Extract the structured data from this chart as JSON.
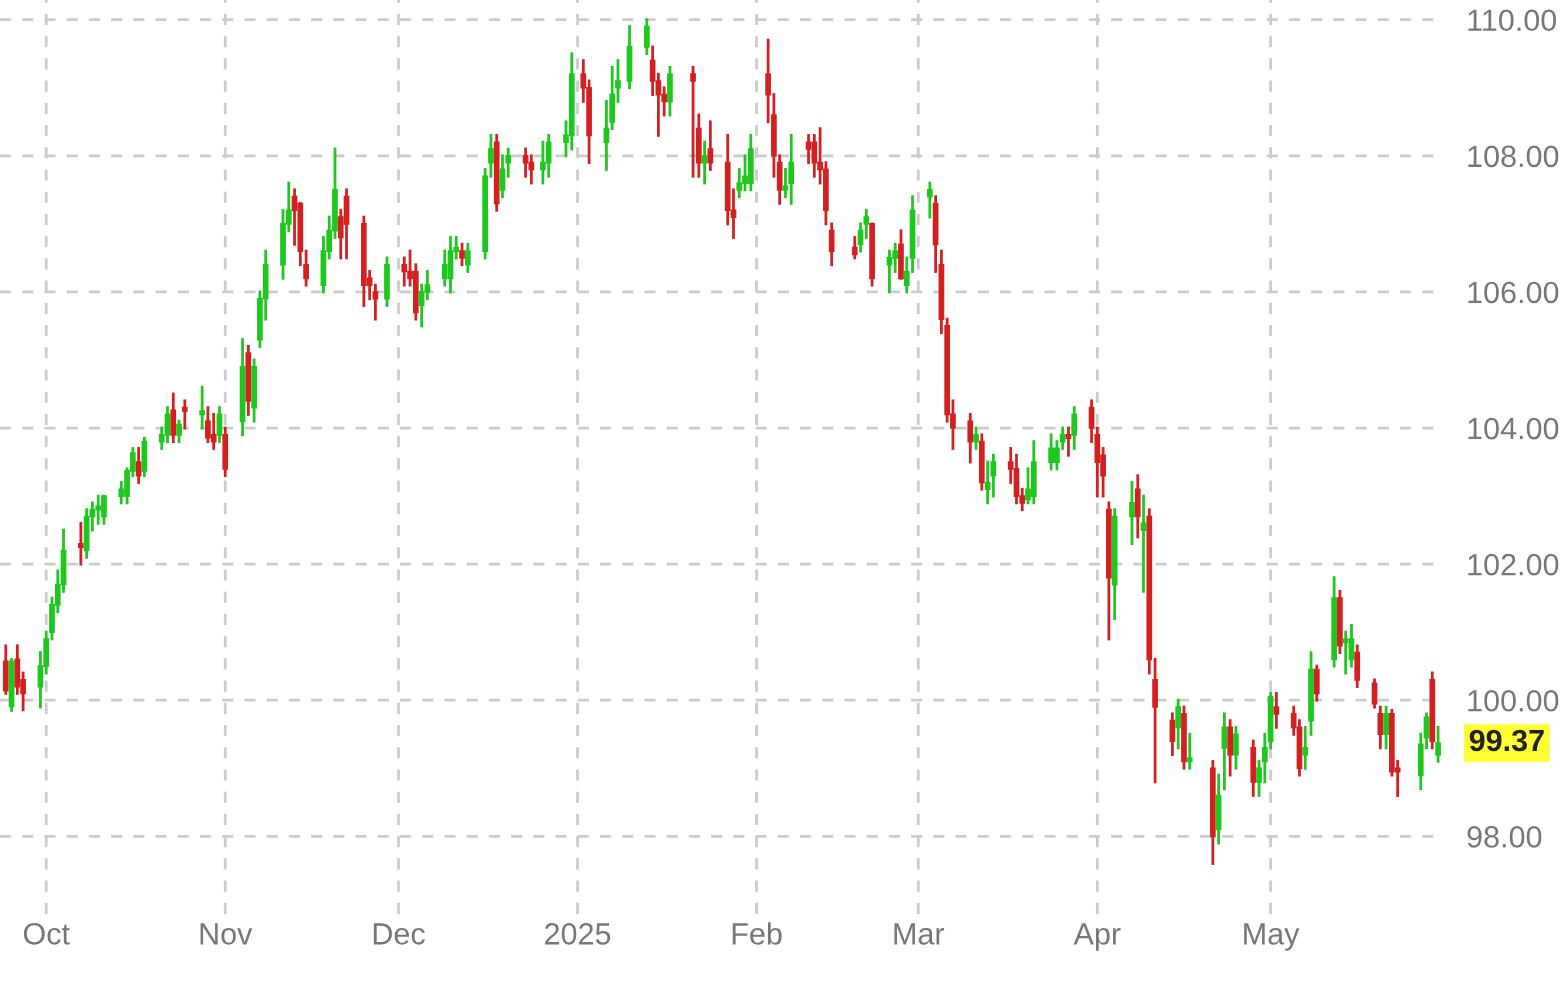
{
  "chart_data": {
    "type": "candlestick",
    "x": [
      "2024-09-24",
      "2024-09-25",
      "2024-09-26",
      "2024-09-27",
      "2024-09-30",
      "2024-10-01",
      "2024-10-02",
      "2024-10-03",
      "2024-10-04",
      "2024-10-07",
      "2024-10-08",
      "2024-10-09",
      "2024-10-10",
      "2024-10-11",
      "2024-10-14",
      "2024-10-15",
      "2024-10-16",
      "2024-10-17",
      "2024-10-18",
      "2024-10-21",
      "2024-10-22",
      "2024-10-23",
      "2024-10-24",
      "2024-10-25",
      "2024-10-28",
      "2024-10-29",
      "2024-10-30",
      "2024-10-31",
      "2024-11-01",
      "2024-11-04",
      "2024-11-05",
      "2024-11-06",
      "2024-11-07",
      "2024-11-08",
      "2024-11-11",
      "2024-11-12",
      "2024-11-13",
      "2024-11-14",
      "2024-11-15",
      "2024-11-18",
      "2024-11-19",
      "2024-11-20",
      "2024-11-21",
      "2024-11-22",
      "2024-11-25",
      "2024-11-26",
      "2024-11-27",
      "2024-11-29",
      "2024-12-02",
      "2024-12-03",
      "2024-12-04",
      "2024-12-05",
      "2024-12-06",
      "2024-12-09",
      "2024-12-10",
      "2024-12-11",
      "2024-12-12",
      "2024-12-13",
      "2024-12-16",
      "2024-12-17",
      "2024-12-18",
      "2024-12-19",
      "2024-12-20",
      "2024-12-23",
      "2024-12-24",
      "2024-12-26",
      "2024-12-27",
      "2024-12-30",
      "2024-12-31",
      "2025-01-02",
      "2025-01-03",
      "2025-01-06",
      "2025-01-07",
      "2025-01-08",
      "2025-01-10",
      "2025-01-13",
      "2025-01-14",
      "2025-01-15",
      "2025-01-16",
      "2025-01-17",
      "2025-01-21",
      "2025-01-22",
      "2025-01-23",
      "2025-01-24",
      "2025-01-27",
      "2025-01-28",
      "2025-01-29",
      "2025-01-30",
      "2025-01-31",
      "2025-02-03",
      "2025-02-04",
      "2025-02-05",
      "2025-02-06",
      "2025-02-07",
      "2025-02-10",
      "2025-02-11",
      "2025-02-12",
      "2025-02-13",
      "2025-02-14",
      "2025-02-18",
      "2025-02-19",
      "2025-02-20",
      "2025-02-21",
      "2025-02-24",
      "2025-02-25",
      "2025-02-26",
      "2025-02-27",
      "2025-02-28",
      "2025-03-03",
      "2025-03-04",
      "2025-03-05",
      "2025-03-06",
      "2025-03-07",
      "2025-03-10",
      "2025-03-11",
      "2025-03-12",
      "2025-03-13",
      "2025-03-14",
      "2025-03-17",
      "2025-03-18",
      "2025-03-19",
      "2025-03-20",
      "2025-03-21",
      "2025-03-24",
      "2025-03-25",
      "2025-03-26",
      "2025-03-27",
      "2025-03-28",
      "2025-03-31",
      "2025-04-01",
      "2025-04-02",
      "2025-04-03",
      "2025-04-04",
      "2025-04-07",
      "2025-04-08",
      "2025-04-09",
      "2025-04-10",
      "2025-04-11",
      "2025-04-14",
      "2025-04-15",
      "2025-04-16",
      "2025-04-17",
      "2025-04-21",
      "2025-04-22",
      "2025-04-23",
      "2025-04-24",
      "2025-04-25",
      "2025-04-28",
      "2025-04-29",
      "2025-04-30",
      "2025-05-01",
      "2025-05-02",
      "2025-05-05",
      "2025-05-06",
      "2025-05-07",
      "2025-05-08",
      "2025-05-09",
      "2025-05-12",
      "2025-05-13",
      "2025-05-14",
      "2025-05-15",
      "2025-05-16",
      "2025-05-19",
      "2025-05-20",
      "2025-05-21",
      "2025-05-22",
      "2025-05-23",
      "2025-05-27",
      "2025-05-28",
      "2025-05-29",
      "2025-05-30"
    ],
    "ohlc": [
      [
        100.57,
        100.8,
        100.1,
        100.14
      ],
      [
        99.91,
        100.6,
        99.85,
        100.57
      ],
      [
        100.6,
        100.8,
        100.1,
        100.2
      ],
      [
        100.3,
        100.4,
        99.86,
        100.1
      ],
      [
        100.2,
        100.7,
        99.9,
        100.5
      ],
      [
        100.5,
        101.0,
        100.4,
        100.9
      ],
      [
        101.0,
        101.5,
        100.9,
        101.4
      ],
      [
        101.4,
        101.9,
        101.3,
        101.7
      ],
      [
        101.7,
        102.5,
        101.6,
        102.2
      ],
      [
        102.3,
        102.6,
        102.0,
        102.25
      ],
      [
        102.2,
        102.8,
        102.1,
        102.7
      ],
      [
        102.7,
        102.9,
        102.5,
        102.8
      ],
      [
        102.8,
        103.0,
        102.6,
        102.85
      ],
      [
        102.7,
        103.0,
        102.6,
        103.0
      ],
      [
        103.0,
        103.2,
        102.9,
        103.1
      ],
      [
        103.0,
        103.4,
        102.9,
        103.37
      ],
      [
        103.37,
        103.7,
        103.3,
        103.63
      ],
      [
        103.5,
        103.7,
        103.2,
        103.3
      ],
      [
        103.37,
        103.85,
        103.3,
        103.8
      ],
      [
        103.8,
        104.0,
        103.7,
        103.9
      ],
      [
        103.9,
        104.3,
        103.8,
        104.2
      ],
      [
        104.26,
        104.5,
        103.8,
        103.9
      ],
      [
        103.9,
        104.1,
        103.8,
        104.05
      ],
      [
        104.3,
        104.4,
        104.0,
        104.25
      ],
      [
        104.2,
        104.6,
        104.0,
        104.25
      ],
      [
        104.1,
        104.3,
        103.8,
        103.86
      ],
      [
        103.9,
        104.2,
        103.7,
        103.8
      ],
      [
        103.9,
        104.3,
        103.8,
        104.2
      ],
      [
        103.9,
        104.0,
        103.3,
        103.4
      ],
      [
        104.1,
        105.3,
        103.9,
        104.9
      ],
      [
        105.1,
        105.2,
        104.2,
        104.4
      ],
      [
        104.3,
        105.0,
        104.1,
        104.9
      ],
      [
        105.3,
        106.0,
        105.2,
        105.9
      ],
      [
        105.9,
        106.6,
        105.6,
        106.4
      ],
      [
        106.4,
        107.2,
        106.2,
        107.0
      ],
      [
        107.0,
        107.6,
        106.9,
        107.2
      ],
      [
        107.4,
        107.5,
        106.7,
        107.2
      ],
      [
        107.3,
        107.3,
        106.4,
        106.6
      ],
      [
        106.4,
        106.6,
        106.1,
        106.2
      ],
      [
        106.1,
        106.8,
        106.0,
        106.6
      ],
      [
        106.6,
        107.1,
        106.5,
        106.9
      ],
      [
        106.9,
        108.1,
        106.8,
        107.5
      ],
      [
        107.1,
        107.2,
        106.5,
        106.8
      ],
      [
        107.4,
        107.5,
        106.5,
        107.0
      ],
      [
        107.0,
        107.1,
        105.8,
        106.1
      ],
      [
        106.2,
        106.3,
        105.9,
        106.1
      ],
      [
        106.0,
        106.1,
        105.6,
        105.9
      ],
      [
        105.9,
        106.5,
        105.8,
        106.4
      ],
      [
        106.4,
        106.5,
        106.1,
        106.3
      ],
      [
        106.3,
        106.6,
        106.1,
        106.2
      ],
      [
        106.3,
        106.4,
        105.6,
        105.7
      ],
      [
        105.8,
        106.1,
        105.5,
        106.0
      ],
      [
        106.0,
        106.3,
        105.9,
        106.1
      ],
      [
        106.2,
        106.6,
        106.1,
        106.4
      ],
      [
        106.2,
        106.8,
        106.0,
        106.6
      ],
      [
        106.6,
        106.8,
        106.5,
        106.65
      ],
      [
        106.6,
        106.7,
        106.4,
        106.5
      ],
      [
        106.4,
        106.7,
        106.3,
        106.6
      ],
      [
        106.6,
        107.8,
        106.5,
        107.7
      ],
      [
        107.9,
        108.3,
        107.7,
        108.1
      ],
      [
        108.2,
        108.3,
        107.2,
        107.3
      ],
      [
        107.5,
        108.0,
        107.4,
        107.8
      ],
      [
        107.9,
        108.1,
        107.7,
        108.0
      ],
      [
        108.0,
        108.1,
        107.7,
        107.9
      ],
      [
        107.9,
        108.0,
        107.6,
        107.8
      ],
      [
        107.8,
        108.2,
        107.6,
        107.9
      ],
      [
        107.9,
        108.3,
        107.7,
        108.2
      ],
      [
        108.2,
        108.5,
        108.0,
        108.3
      ],
      [
        108.3,
        109.5,
        108.1,
        109.2
      ],
      [
        109.2,
        109.4,
        108.8,
        109.0
      ],
      [
        109.0,
        109.1,
        107.9,
        108.3
      ],
      [
        108.2,
        108.8,
        107.8,
        108.4
      ],
      [
        108.5,
        109.3,
        108.4,
        108.9
      ],
      [
        109.0,
        109.4,
        108.8,
        109.1
      ],
      [
        109.1,
        109.9,
        109.0,
        109.6
      ],
      [
        109.6,
        110.0,
        109.5,
        109.9
      ],
      [
        109.4,
        109.6,
        108.9,
        109.1
      ],
      [
        109.1,
        109.2,
        108.3,
        108.9
      ],
      [
        108.9,
        109.0,
        108.6,
        108.8
      ],
      [
        108.8,
        109.3,
        108.6,
        109.2
      ],
      [
        109.2,
        109.3,
        107.7,
        109.1
      ],
      [
        108.4,
        108.6,
        107.7,
        107.9
      ],
      [
        107.9,
        108.2,
        107.6,
        108.0
      ],
      [
        108.1,
        108.5,
        107.8,
        107.9
      ],
      [
        107.9,
        108.3,
        107.0,
        107.2
      ],
      [
        107.2,
        107.5,
        106.8,
        107.1
      ],
      [
        107.5,
        107.8,
        107.4,
        107.6
      ],
      [
        107.6,
        108.0,
        107.5,
        107.7
      ],
      [
        107.6,
        108.3,
        107.5,
        108.1
      ],
      [
        109.2,
        109.7,
        108.5,
        108.9
      ],
      [
        108.6,
        108.9,
        107.7,
        108.0
      ],
      [
        107.9,
        108.0,
        107.3,
        107.5
      ],
      [
        107.5,
        107.8,
        107.4,
        107.55
      ],
      [
        107.6,
        108.3,
        107.3,
        107.9
      ],
      [
        108.2,
        108.3,
        107.9,
        108.1
      ],
      [
        108.2,
        108.3,
        107.7,
        107.9
      ],
      [
        107.9,
        108.4,
        107.6,
        107.8
      ],
      [
        107.8,
        107.9,
        107.0,
        107.2
      ],
      [
        106.9,
        107.0,
        106.4,
        106.6
      ],
      [
        106.65,
        106.8,
        106.5,
        106.55
      ],
      [
        106.7,
        107.0,
        106.6,
        106.9
      ],
      [
        107.0,
        107.2,
        106.8,
        107.1
      ],
      [
        107.0,
        107.0,
        106.1,
        106.2
      ],
      [
        106.4,
        106.6,
        106.0,
        106.5
      ],
      [
        106.5,
        106.7,
        106.3,
        106.6
      ],
      [
        106.7,
        106.9,
        106.2,
        106.2
      ],
      [
        106.1,
        106.5,
        106.0,
        106.3
      ],
      [
        106.5,
        107.4,
        106.3,
        107.2
      ],
      [
        107.4,
        107.6,
        107.1,
        107.5
      ],
      [
        107.3,
        107.4,
        106.3,
        106.7
      ],
      [
        106.4,
        106.6,
        105.4,
        105.6
      ],
      [
        105.5,
        105.6,
        104.1,
        104.2
      ],
      [
        104.2,
        104.4,
        103.7,
        104.0
      ],
      [
        104.1,
        104.2,
        103.5,
        103.8
      ],
      [
        103.8,
        104.0,
        103.7,
        103.9
      ],
      [
        103.8,
        103.9,
        103.1,
        103.2
      ],
      [
        103.1,
        103.5,
        102.9,
        103.2
      ],
      [
        103.3,
        103.6,
        103.0,
        103.5
      ],
      [
        103.5,
        103.7,
        103.2,
        103.4
      ],
      [
        103.4,
        103.6,
        102.9,
        103.0
      ],
      [
        103.0,
        103.1,
        102.8,
        102.9
      ],
      [
        102.95,
        103.4,
        102.9,
        103.1
      ],
      [
        103.0,
        103.8,
        102.9,
        103.5
      ],
      [
        103.5,
        103.9,
        103.4,
        103.7
      ],
      [
        103.5,
        103.8,
        103.4,
        103.7
      ],
      [
        103.8,
        104.0,
        103.7,
        103.9
      ],
      [
        103.9,
        104.0,
        103.6,
        103.85
      ],
      [
        103.9,
        104.3,
        103.7,
        104.2
      ],
      [
        104.3,
        104.4,
        103.8,
        104.0
      ],
      [
        103.9,
        104.0,
        103.0,
        103.5
      ],
      [
        103.6,
        103.7,
        103.0,
        103.3
      ],
      [
        102.8,
        102.9,
        100.9,
        101.8
      ],
      [
        101.7,
        102.8,
        101.2,
        102.7
      ],
      [
        102.7,
        103.2,
        102.3,
        102.9
      ],
      [
        103.1,
        103.3,
        102.4,
        102.7
      ],
      [
        102.5,
        103.0,
        101.6,
        102.6
      ],
      [
        102.7,
        102.8,
        100.4,
        100.6
      ],
      [
        100.3,
        100.6,
        98.8,
        99.9
      ],
      [
        99.7,
        99.8,
        99.2,
        99.4
      ],
      [
        99.6,
        100.0,
        99.3,
        99.9
      ],
      [
        99.8,
        99.9,
        99.0,
        99.1
      ],
      [
        99.1,
        99.5,
        99.0,
        99.15
      ],
      [
        99.0,
        99.1,
        97.6,
        98.0
      ],
      [
        98.1,
        98.9,
        97.9,
        98.6
      ],
      [
        99.3,
        99.8,
        98.7,
        99.6
      ],
      [
        99.6,
        99.7,
        98.9,
        99.2
      ],
      [
        99.2,
        99.6,
        99.0,
        99.5
      ],
      [
        99.3,
        99.4,
        98.6,
        98.8
      ],
      [
        98.8,
        99.1,
        98.6,
        99.0
      ],
      [
        99.1,
        99.5,
        98.8,
        99.3
      ],
      [
        99.4,
        100.1,
        99.3,
        100.05
      ],
      [
        99.9,
        100.1,
        99.6,
        99.8
      ],
      [
        99.8,
        99.9,
        99.5,
        99.6
      ],
      [
        99.6,
        99.7,
        98.9,
        99.0
      ],
      [
        99.2,
        99.6,
        99.0,
        99.3
      ],
      [
        99.7,
        100.7,
        99.5,
        100.45
      ],
      [
        100.45,
        100.5,
        100.0,
        100.1
      ],
      [
        100.6,
        101.8,
        100.5,
        101.5
      ],
      [
        101.5,
        101.6,
        100.7,
        100.8
      ],
      [
        100.85,
        101.0,
        100.4,
        100.9
      ],
      [
        100.6,
        101.1,
        100.5,
        100.9
      ],
      [
        100.7,
        100.8,
        100.2,
        100.3
      ],
      [
        100.25,
        100.3,
        99.9,
        99.95
      ],
      [
        99.8,
        99.9,
        99.3,
        99.5
      ],
      [
        99.5,
        99.9,
        99.3,
        99.8
      ],
      [
        99.8,
        99.85,
        98.9,
        98.95
      ],
      [
        99.0,
        99.1,
        98.6,
        98.95
      ],
      [
        98.9,
        99.5,
        98.7,
        99.35
      ],
      [
        99.45,
        99.8,
        99.3,
        99.75
      ],
      [
        100.3,
        100.4,
        99.3,
        99.4
      ],
      [
        99.2,
        99.6,
        99.1,
        99.37
      ]
    ],
    "colors": [
      "#d42020",
      "#1ec81e",
      "#d42020",
      "#d42020",
      "#1ec81e",
      "#1ec81e",
      "#1ec81e",
      "#1ec81e",
      "#1ec81e",
      "#d42020",
      "#1ec81e",
      "#1ec81e",
      "#1ec81e",
      "#1ec81e",
      "#1ec81e",
      "#1ec81e",
      "#1ec81e",
      "#d42020",
      "#1ec81e",
      "#1ec81e",
      "#1ec81e",
      "#d42020",
      "#1ec81e",
      "#d42020",
      "#1ec81e",
      "#d42020",
      "#d42020",
      "#1ec81e",
      "#d42020",
      "#1ec81e",
      "#d42020",
      "#1ec81e",
      "#1ec81e",
      "#1ec81e",
      "#1ec81e",
      "#1ec81e",
      "#d42020",
      "#d42020",
      "#d42020",
      "#1ec81e",
      "#1ec81e",
      "#1ec81e",
      "#d42020",
      "#d42020",
      "#d42020",
      "#d42020",
      "#d42020",
      "#1ec81e",
      "#d42020",
      "#d42020",
      "#d42020",
      "#1ec81e",
      "#1ec81e",
      "#1ec81e",
      "#1ec81e",
      "#1ec81e",
      "#d42020",
      "#1ec81e",
      "#1ec81e",
      "#1ec81e",
      "#d42020",
      "#1ec81e",
      "#1ec81e",
      "#d42020",
      "#d42020",
      "#1ec81e",
      "#1ec81e",
      "#1ec81e",
      "#1ec81e",
      "#d42020",
      "#d42020",
      "#1ec81e",
      "#1ec81e",
      "#1ec81e",
      "#1ec81e",
      "#1ec81e",
      "#d42020",
      "#d42020",
      "#d42020",
      "#1ec81e",
      "#d42020",
      "#d42020",
      "#1ec81e",
      "#d42020",
      "#d42020",
      "#d42020",
      "#1ec81e",
      "#1ec81e",
      "#1ec81e",
      "#d42020",
      "#d42020",
      "#d42020",
      "#1ec81e",
      "#1ec81e",
      "#d42020",
      "#d42020",
      "#d42020",
      "#d42020",
      "#d42020",
      "#d42020",
      "#1ec81e",
      "#1ec81e",
      "#d42020",
      "#1ec81e",
      "#1ec81e",
      "#d42020",
      "#1ec81e",
      "#1ec81e",
      "#1ec81e",
      "#d42020",
      "#d42020",
      "#d42020",
      "#d42020",
      "#d42020",
      "#1ec81e",
      "#d42020",
      "#1ec81e",
      "#1ec81e",
      "#d42020",
      "#d42020",
      "#d42020",
      "#1ec81e",
      "#1ec81e",
      "#1ec81e",
      "#1ec81e",
      "#1ec81e",
      "#d42020",
      "#1ec81e",
      "#d42020",
      "#d42020",
      "#d42020",
      "#d42020",
      "#1ec81e",
      "#1ec81e",
      "#d42020",
      "#1ec81e",
      "#d42020",
      "#d42020",
      "#d42020",
      "#1ec81e",
      "#d42020",
      "#1ec81e",
      "#d42020",
      "#1ec81e",
      "#1ec81e",
      "#d42020",
      "#1ec81e",
      "#d42020",
      "#1ec81e",
      "#1ec81e",
      "#1ec81e",
      "#d42020",
      "#d42020",
      "#d42020",
      "#1ec81e",
      "#1ec81e",
      "#d42020",
      "#1ec81e",
      "#d42020",
      "#1ec81e",
      "#1ec81e",
      "#d42020",
      "#d42020",
      "#d42020",
      "#1ec81e",
      "#d42020",
      "#d42020",
      "#1ec81e",
      "#1ec81e",
      "#d42020",
      "#1ec81e"
    ],
    "xlim": [
      "2024-09-23",
      "2025-05-31"
    ],
    "xticks": [
      {
        "value": "2024-10-01",
        "label": "Oct"
      },
      {
        "value": "2024-11-01",
        "label": "Nov"
      },
      {
        "value": "2024-12-01",
        "label": "Dec"
      },
      {
        "value": "2025-01-01",
        "label": "2025"
      },
      {
        "value": "2025-02-01",
        "label": "Feb"
      },
      {
        "value": "2025-03-01",
        "label": "Mar"
      },
      {
        "value": "2025-04-01",
        "label": "Apr"
      },
      {
        "value": "2025-05-01",
        "label": "May"
      }
    ],
    "ylim": [
      96.86,
      110.29
    ],
    "yticks": [
      {
        "value": 98,
        "label": "98.00"
      },
      {
        "value": 100,
        "label": "100.00"
      },
      {
        "value": 102,
        "label": "102.00"
      },
      {
        "value": 104,
        "label": "104.00"
      },
      {
        "value": 106,
        "label": "106.00"
      },
      {
        "value": 108,
        "label": "108.00"
      },
      {
        "value": 110,
        "label": "110.00"
      }
    ],
    "grid": true,
    "annotations": [
      {
        "text": "99.37",
        "x": "2025-05-30",
        "y": 99.37
      }
    ]
  }
}
